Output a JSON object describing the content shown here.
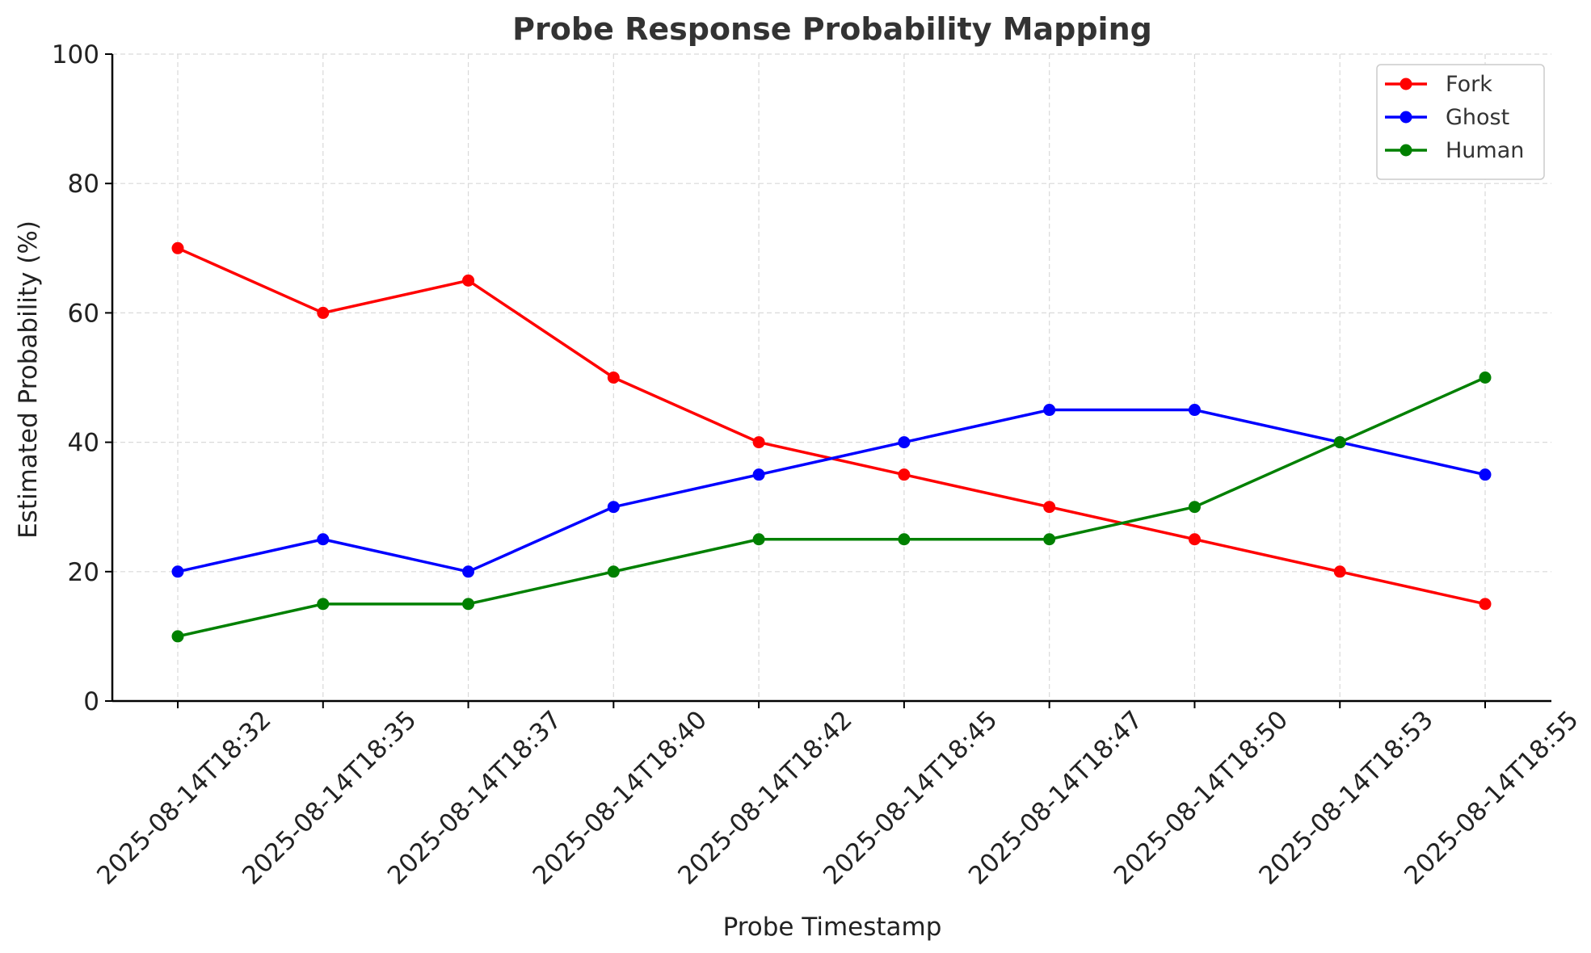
{
  "chart_data": {
    "type": "line",
    "title": "Probe Response Probability Mapping",
    "xlabel": "Probe Timestamp",
    "ylabel": "Estimated Probability (%)",
    "categories": [
      "2025-08-14T18:32",
      "2025-08-14T18:35",
      "2025-08-14T18:37",
      "2025-08-14T18:40",
      "2025-08-14T18:42",
      "2025-08-14T18:45",
      "2025-08-14T18:47",
      "2025-08-14T18:50",
      "2025-08-14T18:53",
      "2025-08-14T18:55"
    ],
    "ylim": [
      0,
      100
    ],
    "yticks": [
      0,
      20,
      40,
      60,
      80,
      100
    ],
    "grid": true,
    "legend_position": "top-right",
    "series": [
      {
        "name": "Fork",
        "color": "#ff0000",
        "values": [
          70,
          60,
          65,
          50,
          40,
          35,
          30,
          25,
          20,
          15
        ]
      },
      {
        "name": "Ghost",
        "color": "#0000ff",
        "values": [
          20,
          25,
          20,
          30,
          35,
          40,
          45,
          45,
          40,
          35
        ]
      },
      {
        "name": "Human",
        "color": "#008000",
        "values": [
          10,
          15,
          15,
          20,
          25,
          25,
          25,
          30,
          40,
          50
        ]
      }
    ]
  }
}
